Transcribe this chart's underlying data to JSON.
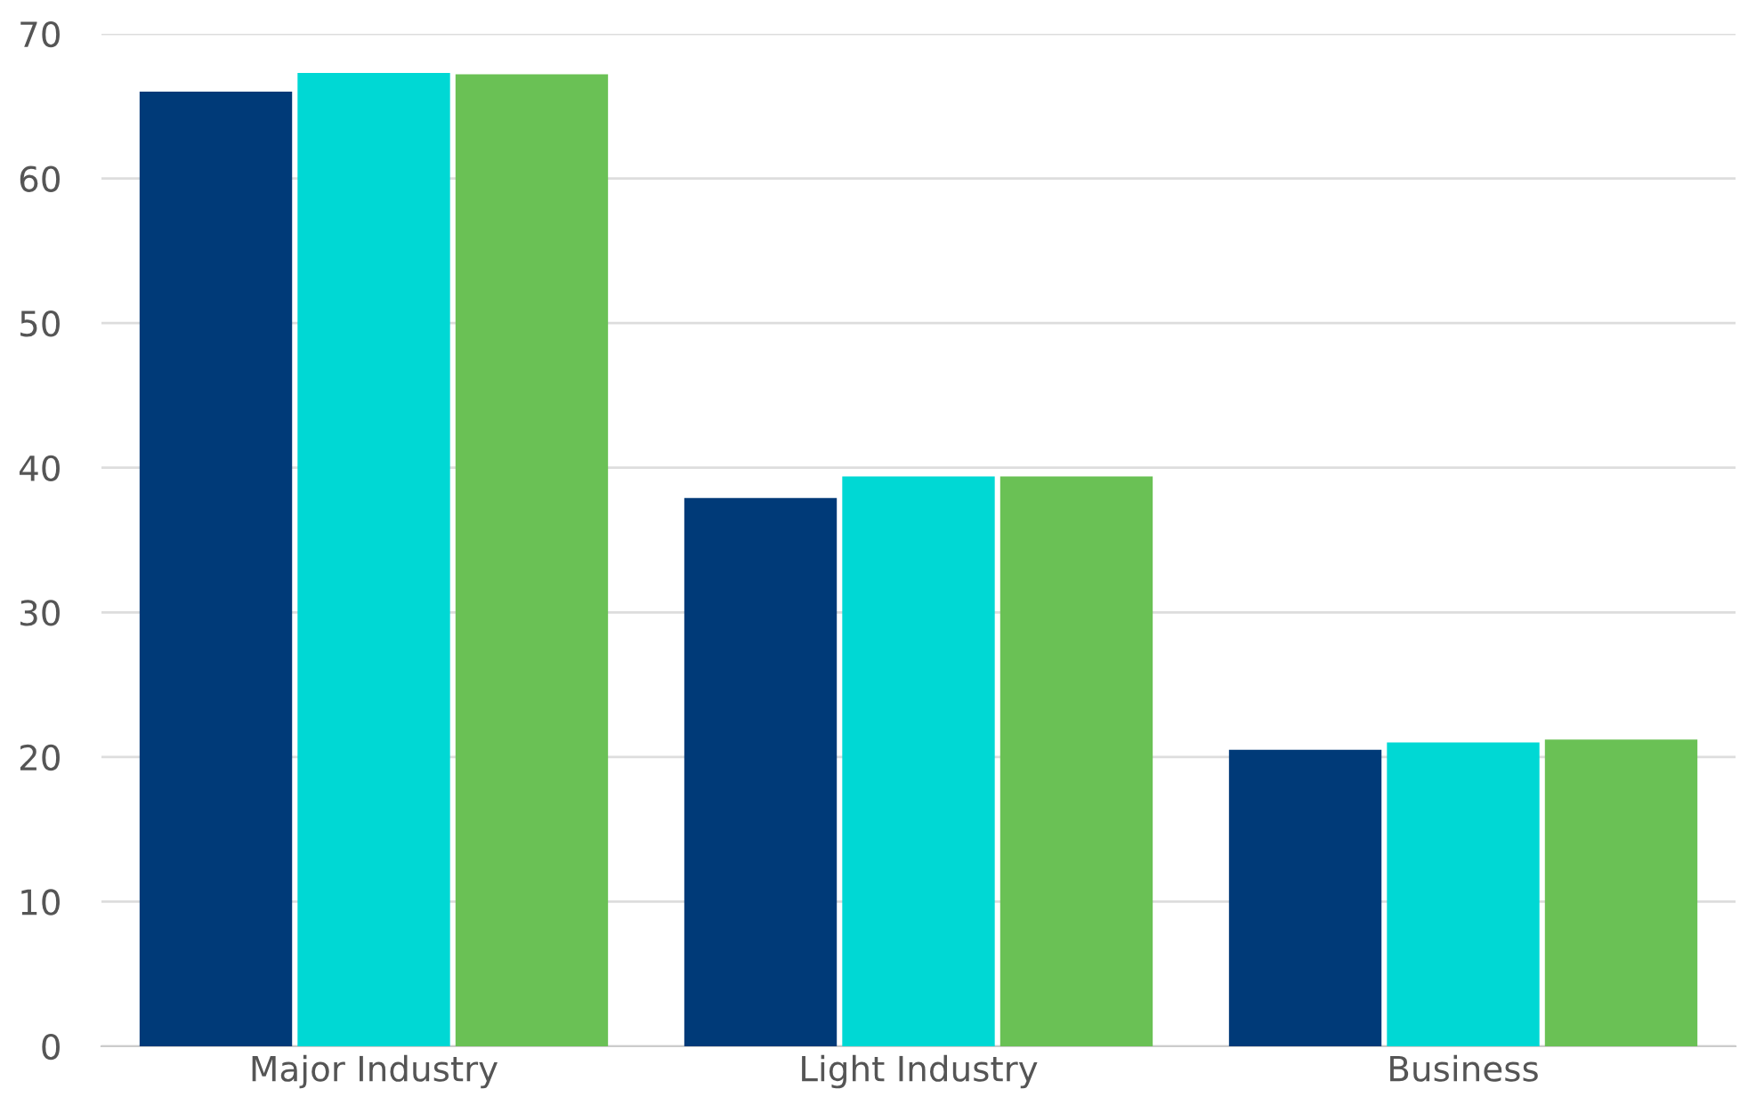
{
  "chart_data": {
    "type": "bar",
    "categories": [
      "Major Industry",
      "Light Industry",
      "Business"
    ],
    "series": [
      {
        "color": "#003a78",
        "values": [
          66,
          37.9,
          20.5
        ]
      },
      {
        "color": "#00d8d4",
        "values": [
          67.3,
          39.4,
          21.0
        ]
      },
      {
        "color": "#6ac155",
        "values": [
          67.2,
          39.4,
          21.2
        ]
      }
    ],
    "ylim": [
      0,
      70
    ],
    "yticks": [
      0,
      10,
      20,
      30,
      40,
      50,
      60,
      70
    ],
    "grid": "y",
    "legend": false
  }
}
